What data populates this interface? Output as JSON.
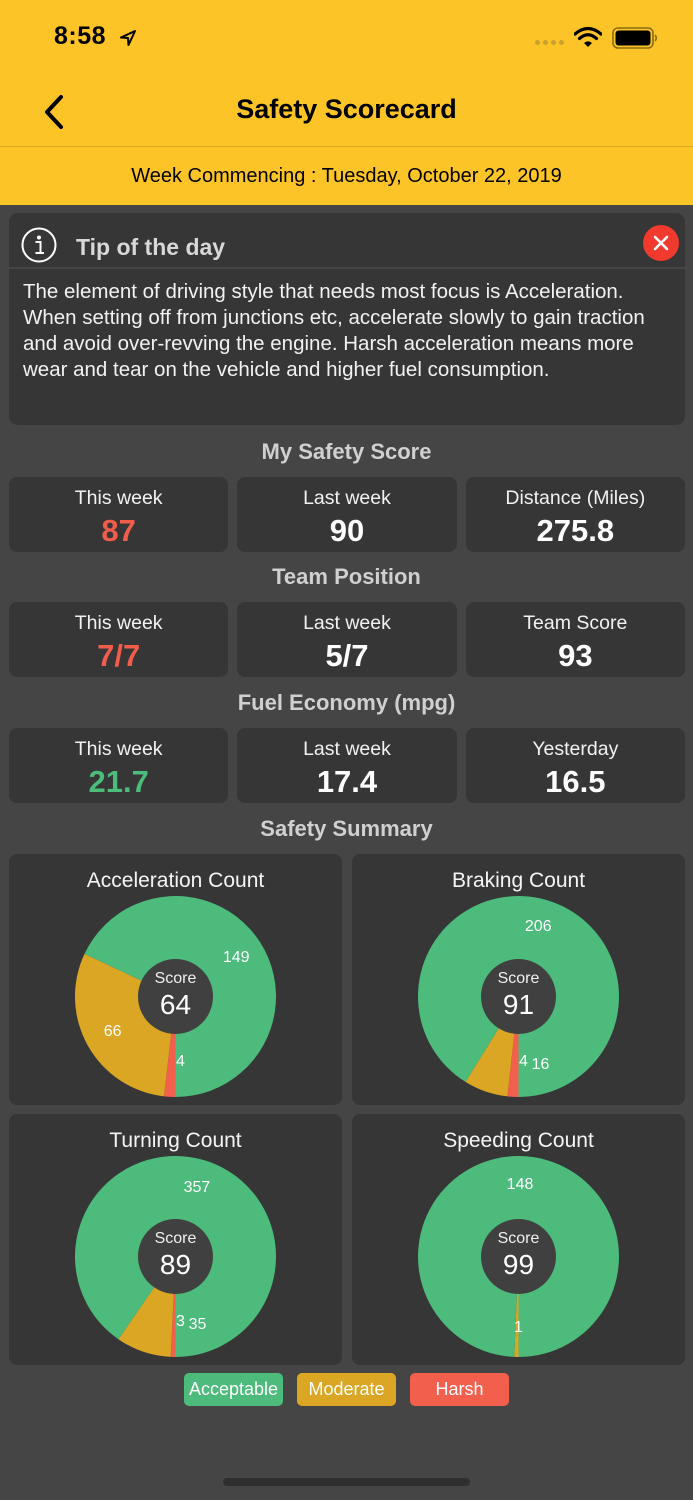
{
  "status_bar": {
    "time": "8:58"
  },
  "nav": {
    "title": "Safety Scorecard",
    "back_icon": "chevron-left-icon"
  },
  "week_bar": {
    "text": "Week Commencing : Tuesday, October 22, 2019"
  },
  "tip": {
    "title": "Tip of the day",
    "body": "The element of driving style that needs most focus is Acceleration. When setting off from junctions etc, accelerate slowly to gain traction and avoid over-revving the engine. Harsh acceleration means more wear and tear on the vehicle and higher fuel consumption."
  },
  "safety_score": {
    "title": "My Safety Score",
    "cards": [
      {
        "label": "This week",
        "value": "87"
      },
      {
        "label": "Last week",
        "value": "90"
      },
      {
        "label": "Distance (Miles)",
        "value": "275.8"
      }
    ]
  },
  "team_position": {
    "title": "Team Position",
    "cards": [
      {
        "label": "This week",
        "value": "7/7"
      },
      {
        "label": "Last week",
        "value": "5/7"
      },
      {
        "label": "Team Score",
        "value": "93"
      }
    ]
  },
  "fuel_economy": {
    "title": "Fuel Economy (mpg)",
    "cards": [
      {
        "label": "This week",
        "value": "21.7"
      },
      {
        "label": "Last week",
        "value": "17.4"
      },
      {
        "label": "Yesterday",
        "value": "16.5"
      }
    ]
  },
  "safety_summary": {
    "title": "Safety Summary",
    "score_label": "Score"
  },
  "colors": {
    "acceptable": "#4cbb7b",
    "moderate": "#dba623",
    "harsh": "#f25f4d",
    "header": "#fdc427"
  },
  "legend": [
    {
      "label": "Acceptable",
      "color": "#4cbb7b"
    },
    {
      "label": "Moderate",
      "color": "#dba623"
    },
    {
      "label": "Harsh",
      "color": "#f25f4d"
    }
  ],
  "chart_data": [
    {
      "type": "pie",
      "title": "Acceleration Count",
      "score": "64",
      "categories": [
        "Harsh",
        "Moderate",
        "Acceptable"
      ],
      "values": [
        4,
        66,
        149
      ]
    },
    {
      "type": "pie",
      "title": "Braking Count",
      "score": "91",
      "categories": [
        "Harsh",
        "Moderate",
        "Acceptable"
      ],
      "values": [
        4,
        16,
        206
      ]
    },
    {
      "type": "pie",
      "title": "Turning Count",
      "score": "89",
      "categories": [
        "Harsh",
        "Moderate",
        "Acceptable"
      ],
      "values": [
        3,
        35,
        357
      ]
    },
    {
      "type": "pie",
      "title": "Speeding Count",
      "score": "99",
      "categories": [
        "Harsh",
        "Moderate",
        "Acceptable"
      ],
      "values": [
        0,
        1,
        148
      ]
    }
  ]
}
